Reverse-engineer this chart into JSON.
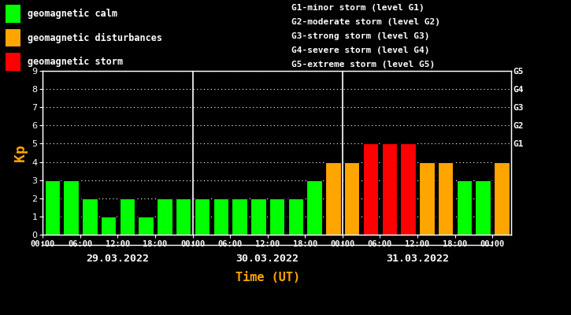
{
  "background_color": "#000000",
  "plot_bg_color": "#000000",
  "bar_values": [
    3,
    3,
    2,
    1,
    2,
    1,
    2,
    2,
    2,
    2,
    2,
    2,
    2,
    2,
    3,
    4,
    4,
    5,
    5,
    5,
    4,
    4,
    3,
    3,
    4
  ],
  "bar_colors_raw": [
    "green",
    "green",
    "green",
    "green",
    "green",
    "green",
    "green",
    "green",
    "green",
    "green",
    "green",
    "green",
    "green",
    "green",
    "green",
    "gold",
    "gold",
    "red",
    "red",
    "red",
    "gold",
    "gold",
    "green",
    "green",
    "gold"
  ],
  "ylim": [
    0,
    9
  ],
  "yticks": [
    0,
    1,
    2,
    3,
    4,
    5,
    6,
    7,
    8,
    9
  ],
  "day_labels": [
    "29.03.2022",
    "30.03.2022",
    "31.03.2022"
  ],
  "xlabel": "Time (UT)",
  "ylabel": "Kp",
  "right_labels": [
    "G5",
    "G4",
    "G3",
    "G2",
    "G1"
  ],
  "right_label_yvals": [
    9,
    8,
    7,
    6,
    5
  ],
  "legend_items": [
    {
      "label": "geomagnetic calm",
      "color": "#00ff00"
    },
    {
      "label": "geomagnetic disturbances",
      "color": "#ffa500"
    },
    {
      "label": "geomagnetic storm",
      "color": "#ff0000"
    }
  ],
  "right_text": [
    "G1-minor storm (level G1)",
    "G2-moderate storm (level G2)",
    "G3-strong storm (level G3)",
    "G4-severe storm (level G4)",
    "G5-extreme storm (level G5)"
  ],
  "font_color": "#ffffff",
  "xlabel_color": "#ffa500",
  "ylabel_color": "#ffa500",
  "grid_color": "#ffffff",
  "n_bars": 25,
  "bars_per_day": 8,
  "day_separators": [
    8,
    16
  ]
}
